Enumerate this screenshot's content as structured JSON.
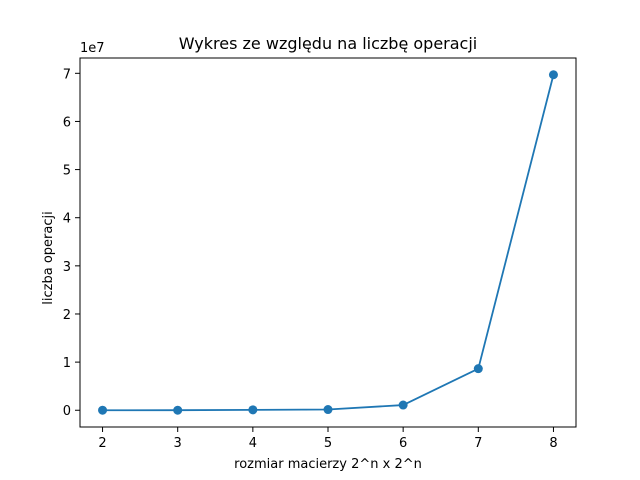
{
  "chart_data": {
    "type": "line",
    "title": "Wykres ze względu na liczbę operacji",
    "xlabel": "rozmiar macierzy 2^n x 2^n",
    "ylabel": "liczba operacji",
    "y_offset_text": "1e7",
    "y_multiplier": 10000000,
    "x": [
      2,
      3,
      4,
      5,
      6,
      7,
      8
    ],
    "series": [
      {
        "values": [
          1000,
          10000,
          80000,
          150000,
          1080000,
          8640000,
          69700000
        ],
        "color": "#1f77b4",
        "marker": "circle"
      }
    ],
    "xlim": [
      1.7,
      8.3
    ],
    "ylim": [
      -3480000,
      73180000
    ],
    "xticks": [
      2,
      3,
      4,
      5,
      6,
      7,
      8
    ],
    "xtick_labels": [
      "2",
      "3",
      "4",
      "5",
      "6",
      "7",
      "8"
    ],
    "yticks": [
      0,
      10000000,
      20000000,
      30000000,
      40000000,
      50000000,
      60000000,
      70000000
    ],
    "ytick_labels": [
      "0",
      "1",
      "2",
      "3",
      "4",
      "5",
      "6",
      "7"
    ],
    "grid": false,
    "legend": false
  }
}
